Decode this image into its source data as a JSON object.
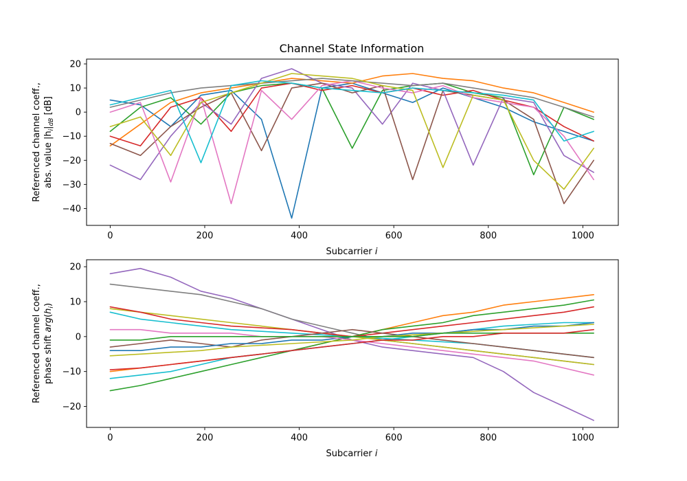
{
  "chart_data": [
    {
      "type": "line",
      "title": "Channel State Information",
      "xlabel_prefix": "Subcarrier ",
      "xlabel_var": "i",
      "ylabel_line1": "Referenced channel coeff.,",
      "ylabel_line2_prefix": "abs. value |h",
      "ylabel_line2_sub1": "i",
      "ylabel_line2_mid": "|",
      "ylabel_line2_sub2": "dB",
      "ylabel_line2_suffix": " [dB]",
      "xlim": [
        -50,
        1075
      ],
      "ylim": [
        -47,
        22
      ],
      "xticks": [
        0,
        200,
        400,
        600,
        800,
        1000
      ],
      "yticks": [
        -40,
        -30,
        -20,
        -10,
        0,
        10,
        20
      ],
      "grid": false,
      "x": [
        0,
        64,
        128,
        192,
        256,
        320,
        384,
        448,
        512,
        576,
        640,
        704,
        768,
        832,
        896,
        960,
        1023
      ],
      "series": [
        {
          "color": "#1f77b4",
          "values": [
            5,
            3,
            -6,
            7,
            9,
            -3,
            -44,
            10,
            12,
            8,
            4,
            10,
            6,
            2,
            -4,
            -8,
            -12
          ]
        },
        {
          "color": "#ff7f0e",
          "values": [
            -14,
            -5,
            4,
            8,
            10,
            12,
            14,
            13,
            12,
            15,
            16,
            14,
            13,
            10,
            8,
            4,
            0
          ]
        },
        {
          "color": "#2ca02c",
          "values": [
            -8,
            2,
            6,
            -5,
            8,
            11,
            12,
            10,
            -15,
            9,
            11,
            12,
            8,
            6,
            -26,
            2,
            -3
          ]
        },
        {
          "color": "#d62728",
          "values": [
            -10,
            -14,
            2,
            6,
            -8,
            10,
            12,
            9,
            11,
            8,
            10,
            7,
            9,
            5,
            2,
            -6,
            -12
          ]
        },
        {
          "color": "#9467bd",
          "values": [
            -22,
            -28,
            -10,
            4,
            -5,
            14,
            18,
            12,
            10,
            -5,
            12,
            9,
            -22,
            6,
            4,
            -18,
            -25
          ]
        },
        {
          "color": "#8c564b",
          "values": [
            -13,
            -18,
            -6,
            2,
            8,
            -16,
            10,
            12,
            8,
            11,
            -28,
            9,
            7,
            5,
            -3,
            -38,
            -20
          ]
        },
        {
          "color": "#e377c2",
          "values": [
            0,
            4,
            -29,
            6,
            -38,
            9,
            -3,
            11,
            13,
            10,
            8,
            11,
            6,
            4,
            2,
            -10,
            -28
          ]
        },
        {
          "color": "#7f7f7f",
          "values": [
            2,
            5,
            8,
            10,
            11,
            12,
            13,
            14,
            13,
            12,
            11,
            12,
            10,
            8,
            6,
            2,
            -2
          ]
        },
        {
          "color": "#bcbd22",
          "values": [
            -6,
            -2,
            -18,
            4,
            8,
            12,
            16,
            15,
            14,
            11,
            9,
            -23,
            7,
            5,
            -20,
            -32,
            -15
          ]
        },
        {
          "color": "#17becf",
          "values": [
            3,
            6,
            9,
            -21,
            11,
            13,
            12,
            10,
            9,
            8,
            10,
            9,
            8,
            7,
            5,
            -12,
            -8
          ]
        }
      ]
    },
    {
      "type": "line",
      "xlabel_prefix": "Subcarrier ",
      "xlabel_var": "i",
      "ylabel_line1": "Referenced channel coeff.,",
      "ylabel_line2_prefix": "phase shift ",
      "ylabel_line2_var": "arg",
      "ylabel_line2_open": "(",
      "ylabel_line2_h": "h",
      "ylabel_line2_sub": "i",
      "ylabel_line2_close": ")",
      "xlim": [
        -50,
        1075
      ],
      "ylim": [
        -26,
        22
      ],
      "xticks": [
        0,
        200,
        400,
        600,
        800,
        1000
      ],
      "yticks": [
        -20,
        -10,
        0,
        10,
        20
      ],
      "grid": false,
      "x": [
        0,
        64,
        128,
        192,
        256,
        320,
        384,
        448,
        512,
        576,
        640,
        704,
        768,
        832,
        896,
        960,
        1023
      ],
      "series": [
        {
          "color": "#9467bd",
          "values": [
            18,
            19.5,
            17,
            13,
            11,
            8,
            5,
            2,
            -1,
            -3,
            -4,
            -5,
            -6,
            -10,
            -16,
            -20,
            -24
          ]
        },
        {
          "color": "#7f7f7f",
          "values": [
            15,
            14,
            13,
            12,
            10,
            8,
            5,
            3,
            1,
            -1,
            -2,
            -3,
            -4,
            -5,
            -6,
            -7,
            -8
          ]
        },
        {
          "color": "#ff7f0e",
          "values": [
            -10,
            -9,
            -8,
            -7,
            -6,
            -5,
            -4,
            -2,
            0,
            2,
            4,
            6,
            7,
            9,
            10,
            11,
            12
          ]
        },
        {
          "color": "#2ca02c",
          "values": [
            -15.5,
            -14,
            -12,
            -10,
            -8,
            -6,
            -4,
            -2,
            0,
            2,
            3,
            4,
            6,
            7,
            8,
            9,
            10.5
          ]
        },
        {
          "color": "#17becf",
          "values": [
            7,
            5,
            4,
            3,
            2,
            1.5,
            1,
            0.5,
            0,
            -0.5,
            -1,
            -1.5,
            -2,
            -3,
            -4,
            -5,
            -6
          ]
        },
        {
          "color": "#17becf",
          "values": [
            -12,
            -11,
            -10,
            -8,
            -6,
            -5,
            -4,
            -3,
            -2,
            -1,
            0,
            1,
            2,
            3,
            3.5,
            4,
            4
          ]
        },
        {
          "color": "#bcbd22",
          "values": [
            8,
            7,
            6,
            5,
            4,
            3,
            2,
            1,
            0,
            -1,
            -2,
            -3,
            -4,
            -5,
            -6,
            -7,
            -8
          ]
        },
        {
          "color": "#d62728",
          "values": [
            8.5,
            7,
            5,
            4,
            3,
            2.5,
            2,
            1,
            0,
            1,
            2,
            3,
            4,
            5,
            6,
            7,
            8.5
          ]
        },
        {
          "color": "#8c564b",
          "values": [
            -3,
            -2,
            -1,
            -2,
            -3,
            -1,
            0,
            1,
            2,
            1,
            0,
            -1,
            -2,
            -3,
            -4,
            -5,
            -6
          ]
        },
        {
          "color": "#1f77b4",
          "values": [
            -4,
            -4,
            -3,
            -3,
            -2,
            -2,
            -1,
            -1,
            0,
            0,
            1,
            1,
            2,
            2,
            3,
            3,
            4
          ]
        },
        {
          "color": "#e377c2",
          "values": [
            2,
            2,
            1,
            1,
            1,
            0,
            0,
            0,
            -1,
            -2,
            -3,
            -4,
            -5,
            -6,
            -7,
            -9,
            -11
          ]
        },
        {
          "color": "#bcbd22",
          "values": [
            -5.5,
            -5,
            -4.5,
            -4,
            -3,
            -2.5,
            -2,
            -1.5,
            -1,
            0,
            0.5,
            1,
            1.5,
            2,
            2.5,
            3,
            3.5
          ]
        },
        {
          "color": "#2ca02c",
          "values": [
            -1,
            -1,
            0,
            0,
            0,
            0,
            0,
            0,
            0,
            0,
            0,
            1,
            1,
            1,
            1,
            1,
            1
          ]
        },
        {
          "color": "#d62728",
          "values": [
            -9.5,
            -9,
            -8,
            -7,
            -6,
            -5,
            -4,
            -3,
            -2,
            -1,
            -1,
            0,
            0,
            1,
            1,
            1,
            2
          ]
        }
      ]
    }
  ]
}
